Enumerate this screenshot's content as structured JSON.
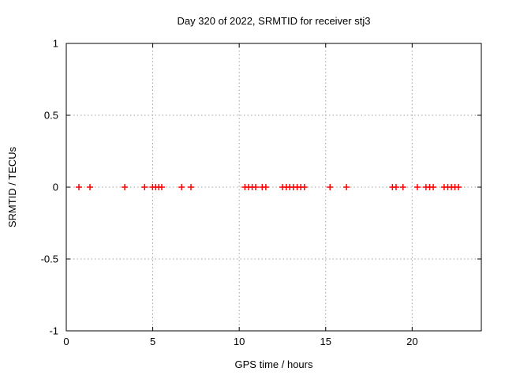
{
  "chart_data": {
    "type": "scatter",
    "title": "Day 320 of 2022, SRMTID for receiver stj3",
    "xlabel": "GPS time / hours",
    "ylabel": "SRMTID / TECUs",
    "xlim": [
      0,
      24
    ],
    "ylim": [
      -1,
      1
    ],
    "grid": true,
    "legend": "none",
    "xticks": [
      {
        "v": 0,
        "label": "0"
      },
      {
        "v": 5,
        "label": "5"
      },
      {
        "v": 10,
        "label": "10"
      },
      {
        "v": 15,
        "label": "15"
      },
      {
        "v": 20,
        "label": "20"
      }
    ],
    "yticks": [
      {
        "v": 1,
        "label": "1"
      },
      {
        "v": 0.5,
        "label": "0.5"
      },
      {
        "v": 0,
        "label": "0"
      },
      {
        "v": -0.5,
        "label": "-0.5"
      },
      {
        "v": -1,
        "label": "-1"
      }
    ],
    "marker": {
      "shape": "plus",
      "color": "#ff0000",
      "half_size": 4,
      "stroke_width": 1.5
    },
    "colors": {
      "border": "#000000",
      "grid": "#a0a0a0",
      "marker": "#ff0000"
    },
    "series": [
      {
        "name": "SRMTID",
        "points": [
          [
            0.73,
            0
          ],
          [
            1.37,
            0
          ],
          [
            3.38,
            0
          ],
          [
            4.53,
            0
          ],
          [
            4.99,
            0
          ],
          [
            5.17,
            0
          ],
          [
            5.35,
            0
          ],
          [
            5.52,
            0
          ],
          [
            6.67,
            0
          ],
          [
            7.21,
            0
          ],
          [
            10.33,
            0
          ],
          [
            10.54,
            0
          ],
          [
            10.75,
            0
          ],
          [
            10.95,
            0
          ],
          [
            11.33,
            0
          ],
          [
            11.54,
            0
          ],
          [
            12.5,
            0
          ],
          [
            12.72,
            0
          ],
          [
            12.92,
            0
          ],
          [
            13.13,
            0
          ],
          [
            13.35,
            0
          ],
          [
            13.56,
            0
          ],
          [
            13.77,
            0
          ],
          [
            15.25,
            0
          ],
          [
            16.2,
            0
          ],
          [
            18.86,
            0
          ],
          [
            19.07,
            0
          ],
          [
            19.47,
            0
          ],
          [
            20.3,
            0
          ],
          [
            20.8,
            0
          ],
          [
            21.01,
            0
          ],
          [
            21.22,
            0
          ],
          [
            21.85,
            0
          ],
          [
            22.06,
            0
          ],
          [
            22.27,
            0
          ],
          [
            22.47,
            0
          ],
          [
            22.68,
            0
          ]
        ]
      }
    ]
  }
}
